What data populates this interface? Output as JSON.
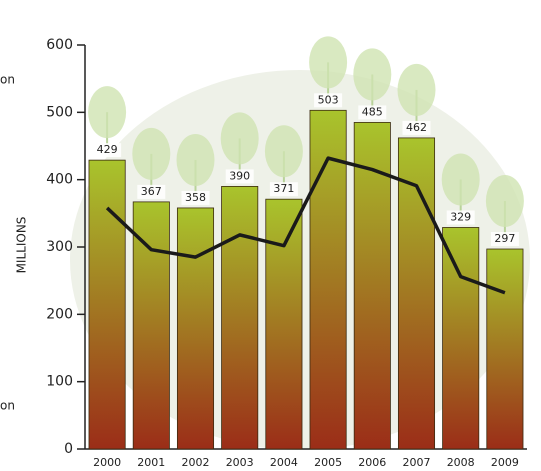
{
  "chart_data": {
    "type": "bar",
    "y_label": "MILLIONS",
    "annotations": [
      "on",
      "on"
    ],
    "categories": [
      "2000",
      "2001",
      "2002",
      "2003",
      "2004",
      "2005",
      "2006",
      "2007",
      "2008",
      "2009"
    ],
    "series": [
      {
        "type": "bar",
        "color": "#a9c42c",
        "color_bottom": "#9b2d18",
        "values": [
          429,
          367,
          358,
          390,
          371,
          503,
          485,
          462,
          329,
          297
        ]
      },
      {
        "type": "line",
        "color": "#1a1a1a",
        "values": [
          358,
          296,
          285,
          318,
          302,
          432,
          415,
          391,
          256,
          232
        ]
      }
    ],
    "ylim": [
      0,
      600
    ],
    "yticks": [
      0,
      100,
      200,
      300,
      400,
      500,
      600
    ]
  }
}
